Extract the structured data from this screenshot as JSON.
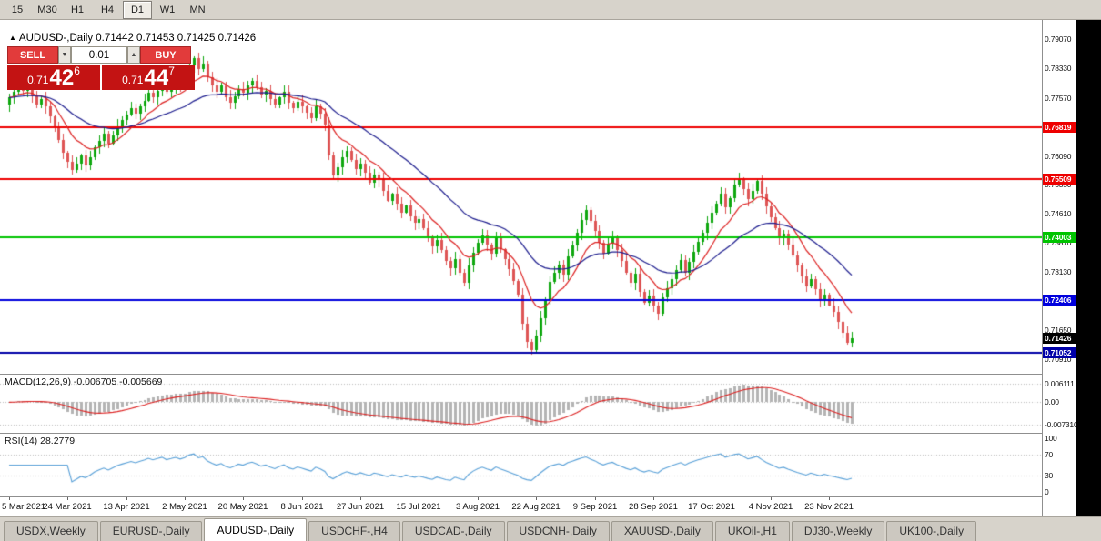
{
  "toolbar": {
    "timeframes": [
      {
        "label": "15",
        "active": false
      },
      {
        "label": "M30",
        "active": false
      },
      {
        "label": "H1",
        "active": false
      },
      {
        "label": "H4",
        "active": false
      },
      {
        "label": "D1",
        "active": true
      },
      {
        "label": "W1",
        "active": false
      },
      {
        "label": "MN",
        "active": false
      }
    ]
  },
  "chart": {
    "marker": "▲",
    "symbol_period": "AUDUSD-,Daily",
    "ohlc": "0.71442 0.71453 0.71425 0.71426"
  },
  "trade_panel": {
    "sell_label": "SELL",
    "buy_label": "BUY",
    "volume": "0.01",
    "spin_down": "▼",
    "spin_up": "▲",
    "sell_price": {
      "small": "0.71",
      "big": "42",
      "sup": "6"
    },
    "buy_price": {
      "small": "0.71",
      "big": "44",
      "sup": "7"
    }
  },
  "price_scale": {
    "ticks": [
      {
        "label": "0.79070",
        "price": 0.7907
      },
      {
        "label": "0.78330",
        "price": 0.7833
      },
      {
        "label": "0.77570",
        "price": 0.7757
      },
      {
        "label": "0.76090",
        "price": 0.7609
      },
      {
        "label": "0.75350",
        "price": 0.7535
      },
      {
        "label": "0.74610",
        "price": 0.7461
      },
      {
        "label": "0.73870",
        "price": 0.7387
      },
      {
        "label": "0.73130",
        "price": 0.7313
      },
      {
        "label": "0.71650",
        "price": 0.7165
      },
      {
        "label": "0.70910",
        "price": 0.7091
      }
    ],
    "badges": [
      {
        "label": "0.76819",
        "price": 0.76819,
        "color": "#ee0000"
      },
      {
        "label": "0.75509",
        "price": 0.75509,
        "color": "#ee0000"
      },
      {
        "label": "0.74003",
        "price": 0.74003,
        "color": "#00c400"
      },
      {
        "label": "0.72406",
        "price": 0.72406,
        "color": "#0000dd"
      },
      {
        "label": "0.71426",
        "price": 0.71426,
        "color": "#000000"
      },
      {
        "label": "0.71052",
        "price": 0.71052,
        "color": "#0000a8"
      }
    ]
  },
  "chart_data": {
    "type": "candlestick",
    "symbol": "AUDUSD-",
    "period": "Daily",
    "y_range": [
      0.7062,
      0.7947
    ],
    "x_labels": [
      {
        "label": "5 Mar 2021",
        "index": 0
      },
      {
        "label": "24 Mar 2021",
        "index": 13
      },
      {
        "label": "13 Apr 2021",
        "index": 26
      },
      {
        "label": "2 May 2021",
        "index": 39
      },
      {
        "label": "20 May 2021",
        "index": 52
      },
      {
        "label": "8 Jun 2021",
        "index": 65
      },
      {
        "label": "27 Jun 2021",
        "index": 78
      },
      {
        "label": "15 Jul 2021",
        "index": 91
      },
      {
        "label": "3 Aug 2021",
        "index": 104
      },
      {
        "label": "22 Aug 2021",
        "index": 117
      },
      {
        "label": "9 Sep 2021",
        "index": 130
      },
      {
        "label": "28 Sep 2021",
        "index": 143
      },
      {
        "label": "17 Oct 2021",
        "index": 156
      },
      {
        "label": "4 Nov 2021",
        "index": 169
      },
      {
        "label": "23 Nov 2021",
        "index": 182
      }
    ],
    "closes": [
      0.7758,
      0.7772,
      0.779,
      0.7776,
      0.7785,
      0.7762,
      0.774,
      0.7755,
      0.7735,
      0.771,
      0.768,
      0.765,
      0.7618,
      0.7595,
      0.7572,
      0.759,
      0.761,
      0.7585,
      0.7605,
      0.763,
      0.7648,
      0.7665,
      0.764,
      0.7662,
      0.7685,
      0.77,
      0.7715,
      0.773,
      0.7718,
      0.7735,
      0.775,
      0.777,
      0.7758,
      0.7775,
      0.779,
      0.7772,
      0.7785,
      0.78,
      0.7788,
      0.7805,
      0.784,
      0.7858,
      0.783,
      0.7845,
      0.781,
      0.779,
      0.7772,
      0.7788,
      0.776,
      0.7745,
      0.7762,
      0.778,
      0.777,
      0.7788,
      0.78,
      0.7785,
      0.7765,
      0.7775,
      0.7755,
      0.774,
      0.7758,
      0.7772,
      0.7745,
      0.773,
      0.7748,
      0.7735,
      0.772,
      0.7705,
      0.7735,
      0.7718,
      0.769,
      0.761,
      0.7558,
      0.758,
      0.7605,
      0.7622,
      0.7598,
      0.7575,
      0.759,
      0.7565,
      0.754,
      0.7562,
      0.7548,
      0.752,
      0.7495,
      0.7512,
      0.7488,
      0.7465,
      0.7482,
      0.7455,
      0.7438,
      0.7448,
      0.7425,
      0.74,
      0.7378,
      0.7395,
      0.7368,
      0.734,
      0.7322,
      0.7345,
      0.731,
      0.7285,
      0.733,
      0.7362,
      0.7388,
      0.7405,
      0.7382,
      0.736,
      0.7398,
      0.737,
      0.7345,
      0.732,
      0.729,
      0.7255,
      0.718,
      0.7135,
      0.7112,
      0.715,
      0.7195,
      0.724,
      0.7288,
      0.731,
      0.7332,
      0.7305,
      0.7352,
      0.738,
      0.7412,
      0.7445,
      0.747,
      0.7442,
      0.7418,
      0.7388,
      0.736,
      0.7385,
      0.7402,
      0.7368,
      0.734,
      0.731,
      0.7285,
      0.7308,
      0.7262,
      0.7235,
      0.7252,
      0.7228,
      0.7205,
      0.7248,
      0.7272,
      0.7295,
      0.7318,
      0.7342,
      0.731,
      0.7338,
      0.7365,
      0.739,
      0.7412,
      0.7438,
      0.7465,
      0.7488,
      0.7512,
      0.7478,
      0.7502,
      0.7535,
      0.755,
      0.7525,
      0.7498,
      0.752,
      0.7545,
      0.7512,
      0.748,
      0.7452,
      0.7425,
      0.7398,
      0.741,
      0.7382,
      0.7355,
      0.7328,
      0.7302,
      0.7275,
      0.7295,
      0.7268,
      0.724,
      0.7255,
      0.7228,
      0.721,
      0.7185,
      0.7158,
      0.7132,
      0.7143
    ],
    "hlines": [
      {
        "price": 0.76819,
        "color": "#ee0000"
      },
      {
        "price": 0.75509,
        "color": "#ee0000"
      },
      {
        "price": 0.74003,
        "color": "#00c400"
      },
      {
        "price": 0.72406,
        "color": "#0000dd"
      },
      {
        "price": 0.71052,
        "color": "#0000a8"
      }
    ],
    "moving_averages": [
      {
        "period": 10,
        "color": "#dd2222"
      },
      {
        "period": 30,
        "color": "#1c1c8e"
      }
    ],
    "candle_colors": {
      "up": "#0fa80f",
      "down": "#de5555"
    },
    "macd": {
      "name": "MACD(12,26,9)",
      "values": "-0.006705 -0.005669",
      "fast": 12,
      "slow": 26,
      "signal": 9,
      "axis_ticks": [
        {
          "label": "0.006111",
          "value": 0.006111
        },
        {
          "label": "0.00",
          "value": 0
        },
        {
          "label": "-0.007310",
          "value": -0.00731
        }
      ],
      "histogram_color": "#b4b4b4",
      "signal_color": "#dd2222"
    },
    "rsi": {
      "name": "RSI(14)",
      "value": "28.2779",
      "period": 14,
      "axis_ticks": [
        {
          "label": "100",
          "value": 100
        },
        {
          "label": "70",
          "value": 70
        },
        {
          "label": "30",
          "value": 30
        },
        {
          "label": "0",
          "value": 0
        }
      ],
      "levels": [
        70,
        30
      ],
      "line_color": "#58a0d8"
    }
  },
  "tabs": [
    {
      "label": "USDX,Weekly",
      "active": false
    },
    {
      "label": "EURUSD-,Daily",
      "active": false
    },
    {
      "label": "AUDUSD-,Daily",
      "active": true
    },
    {
      "label": "USDCHF-,H4",
      "active": false
    },
    {
      "label": "USDCAD-,Daily",
      "active": false
    },
    {
      "label": "USDCNH-,Daily",
      "active": false
    },
    {
      "label": "XAUUSD-,Daily",
      "active": false
    },
    {
      "label": "UKOil-,H1",
      "active": false
    },
    {
      "label": "DJ30-,Weekly",
      "active": false
    },
    {
      "label": "UK100-,Daily",
      "active": false
    }
  ]
}
